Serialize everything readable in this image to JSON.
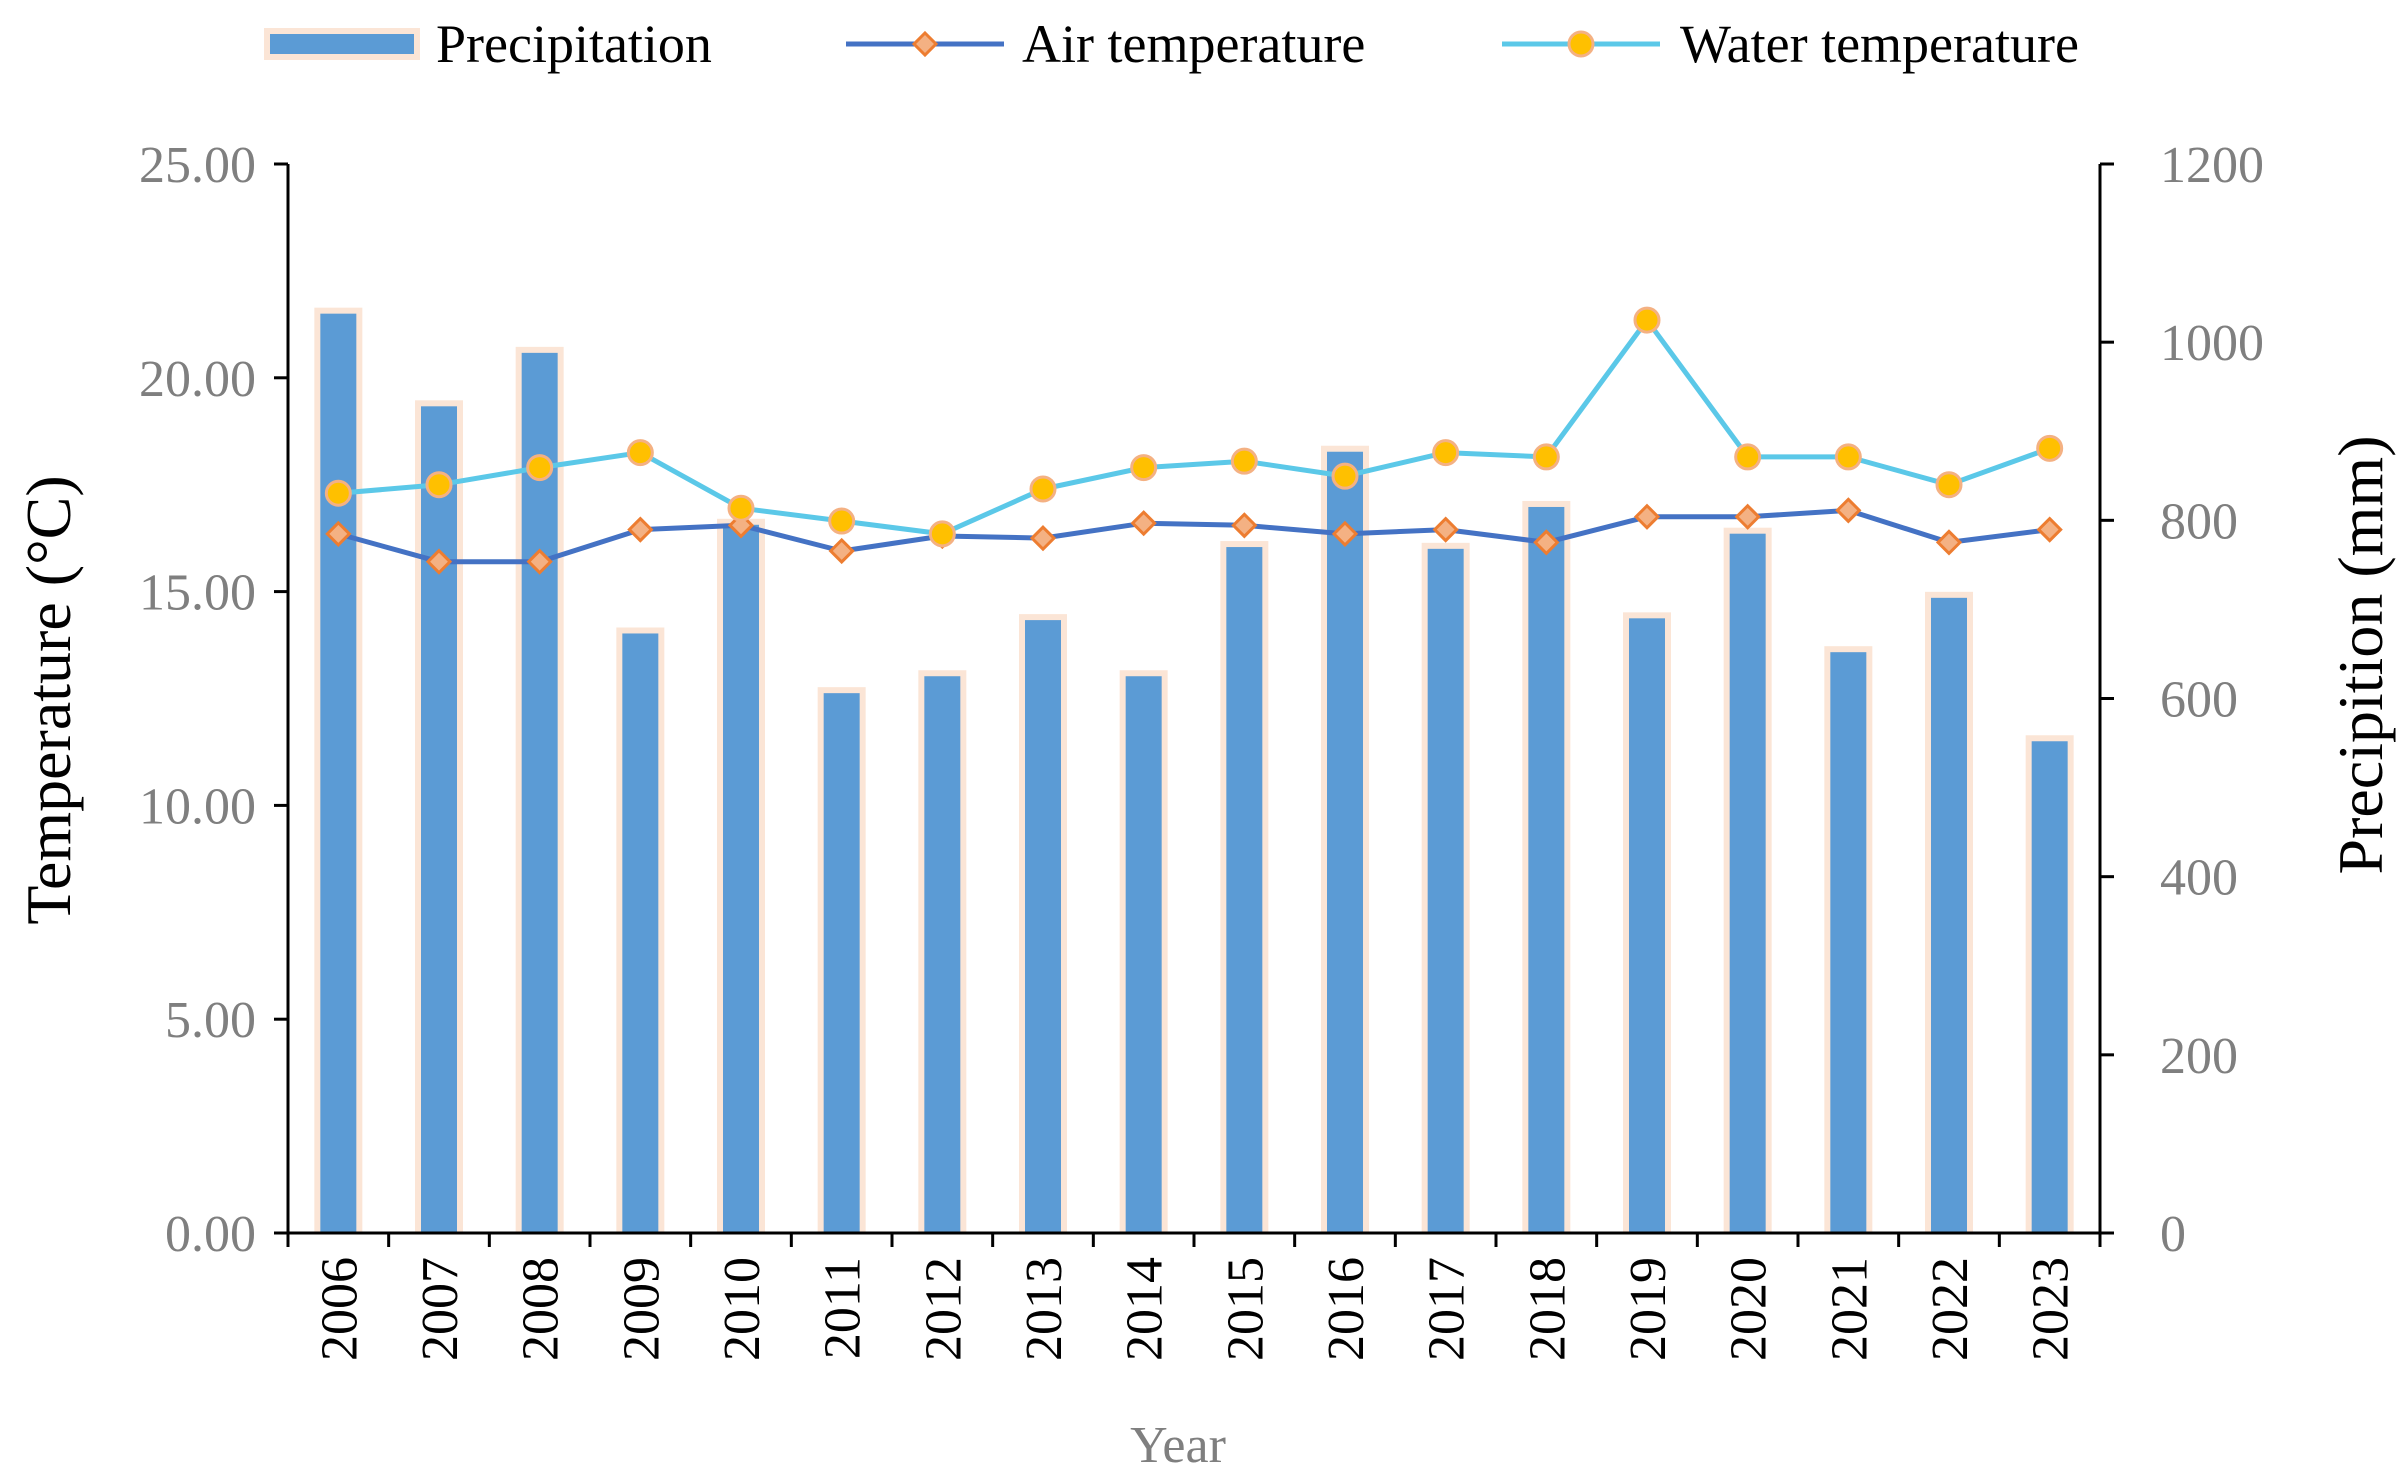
{
  "chart_data": {
    "type": "bar+line",
    "categories": [
      "2006",
      "2007",
      "2008",
      "2009",
      "2010",
      "2011",
      "2012",
      "2013",
      "2014",
      "2015",
      "2016",
      "2017",
      "2018",
      "2019",
      "2020",
      "2021",
      "2022",
      "2023"
    ],
    "series": [
      {
        "name": "Precipitation",
        "kind": "bar",
        "axis": "right",
        "color": "#5b9bd5",
        "glow": "#fbe5d6",
        "values": [
          1032,
          928,
          988,
          673,
          795,
          606,
          625,
          688,
          625,
          770,
          877,
          768,
          815,
          690,
          785,
          652,
          713,
          552
        ]
      },
      {
        "name": "Air temperature",
        "kind": "line",
        "axis": "left",
        "color": "#4472c4",
        "marker": "diamond",
        "marker_fill": "#f4b183",
        "marker_stroke": "#ed7d31",
        "values": [
          16.35,
          15.7,
          15.7,
          16.45,
          16.55,
          15.95,
          16.3,
          16.25,
          16.6,
          16.55,
          16.35,
          16.45,
          16.15,
          16.75,
          16.75,
          16.9,
          16.15,
          16.45
        ]
      },
      {
        "name": "Water temperature",
        "kind": "line",
        "axis": "left",
        "color": "#5bc8e8",
        "marker": "circle",
        "marker_fill": "#ffc000",
        "marker_stroke": "#f4b183",
        "values": [
          17.3,
          17.5,
          17.9,
          18.25,
          16.95,
          16.65,
          16.35,
          17.4,
          17.9,
          18.05,
          17.7,
          18.25,
          18.15,
          21.35,
          18.15,
          18.15,
          17.5,
          18.35
        ]
      }
    ],
    "title": "",
    "xlabel": "Year",
    "ylabel": "Temperature (°C)",
    "y2label": "Precipition (mm)",
    "ylim": [
      0,
      25
    ],
    "y2lim": [
      0,
      1200
    ],
    "yticks": [
      "0.00",
      "5.00",
      "10.00",
      "15.00",
      "20.00",
      "25.00"
    ],
    "y2ticks": [
      "0",
      "200",
      "400",
      "600",
      "800",
      "1000",
      "1200"
    ],
    "grid": false,
    "legend_position": "top"
  }
}
